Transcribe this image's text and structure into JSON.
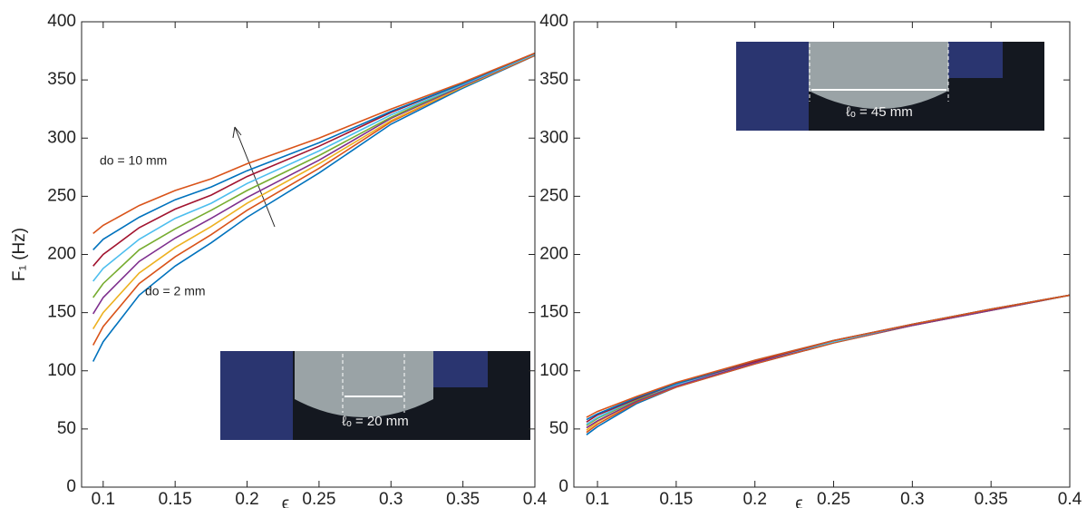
{
  "chart_data": [
    {
      "type": "line",
      "ylabel": "F₁ (Hz)",
      "xlabel": "ϵ",
      "annotations": [
        "do = 10 mm",
        "do = 2 mm",
        "ℓₒ = 20 mm"
      ],
      "x": [
        0.093,
        0.1,
        0.125,
        0.15,
        0.175,
        0.2,
        0.25,
        0.3,
        0.35,
        0.4
      ],
      "xlim": [
        0.085,
        0.4
      ],
      "ylim": [
        0,
        400
      ],
      "xticks": [
        0.1,
        0.15,
        0.2,
        0.25,
        0.3,
        0.35,
        0.4
      ],
      "yticks": [
        0,
        50,
        100,
        150,
        200,
        250,
        300,
        350,
        400
      ],
      "series": [
        {
          "color": "#0072BD",
          "values": [
            108,
            125,
            165,
            190,
            210,
            232,
            270,
            312,
            343,
            371
          ]
        },
        {
          "color": "#D95319",
          "values": [
            122,
            138,
            175,
            198,
            217,
            238,
            274,
            314,
            344,
            371
          ]
        },
        {
          "color": "#EDB120",
          "values": [
            136,
            150,
            184,
            206,
            224,
            244,
            278,
            315,
            344,
            372
          ]
        },
        {
          "color": "#7E2F8E",
          "values": [
            149,
            163,
            194,
            214,
            231,
            249,
            281,
            317,
            345,
            372
          ]
        },
        {
          "color": "#77AC30",
          "values": [
            163,
            175,
            204,
            222,
            238,
            255,
            285,
            318,
            346,
            372
          ]
        },
        {
          "color": "#4DBEEE",
          "values": [
            177,
            188,
            213,
            231,
            244,
            261,
            289,
            320,
            346,
            372
          ]
        },
        {
          "color": "#A2142F",
          "values": [
            190,
            200,
            223,
            239,
            251,
            267,
            293,
            322,
            347,
            373
          ]
        },
        {
          "color": "#0072BD",
          "values": [
            204,
            213,
            232,
            247,
            258,
            272,
            296,
            323,
            347,
            373
          ]
        },
        {
          "color": "#D95319",
          "values": [
            218,
            225,
            242,
            255,
            265,
            278,
            300,
            325,
            348,
            373
          ]
        }
      ]
    },
    {
      "type": "line",
      "xlabel": "ϵ",
      "annotations": [
        "ℓₒ = 45 mm"
      ],
      "x": [
        0.093,
        0.1,
        0.125,
        0.15,
        0.2,
        0.25,
        0.3,
        0.35,
        0.4
      ],
      "xlim": [
        0.085,
        0.4
      ],
      "ylim": [
        0,
        400
      ],
      "xticks": [
        0.1,
        0.15,
        0.2,
        0.25,
        0.3,
        0.35,
        0.4
      ],
      "yticks": [
        0,
        50,
        100,
        150,
        200,
        250,
        300,
        350,
        400
      ],
      "series": [
        {
          "color": "#0072BD",
          "values": [
            45,
            52,
            72,
            86,
            106,
            124,
            139,
            152,
            165
          ]
        },
        {
          "color": "#D95319",
          "values": [
            47,
            54,
            73,
            86,
            106,
            124,
            139,
            152,
            165
          ]
        },
        {
          "color": "#EDB120",
          "values": [
            49,
            56,
            74,
            87,
            107,
            125,
            139,
            152,
            165
          ]
        },
        {
          "color": "#7E2F8E",
          "values": [
            51,
            57,
            74,
            87,
            107,
            125,
            139,
            152,
            165
          ]
        },
        {
          "color": "#77AC30",
          "values": [
            53,
            59,
            75,
            88,
            108,
            125,
            140,
            153,
            165
          ]
        },
        {
          "color": "#4DBEEE",
          "values": [
            54,
            60,
            76,
            88,
            108,
            125,
            140,
            153,
            165
          ]
        },
        {
          "color": "#A2142F",
          "values": [
            56,
            62,
            76,
            89,
            108,
            126,
            140,
            153,
            165
          ]
        },
        {
          "color": "#0072BD",
          "values": [
            58,
            63,
            77,
            89,
            109,
            126,
            140,
            153,
            165
          ]
        },
        {
          "color": "#D95319",
          "values": [
            60,
            65,
            78,
            90,
            109,
            126,
            140,
            153,
            165
          ]
        }
      ]
    }
  ]
}
